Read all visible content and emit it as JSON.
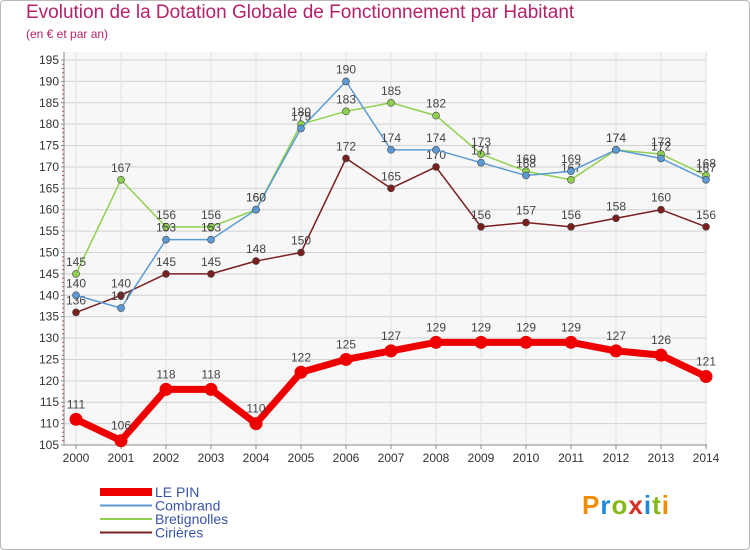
{
  "chart_data": {
    "type": "line",
    "title": "Evolution de la Dotation Globale de Fonctionnement par Habitant",
    "subtitle": "(en € et par an)",
    "xlabel": "",
    "ylabel": "",
    "x": [
      "2000",
      "2001",
      "2002",
      "2003",
      "2004",
      "2005",
      "2006",
      "2007",
      "2008",
      "2009",
      "2010",
      "2011",
      "2012",
      "2013",
      "2014"
    ],
    "ylim": [
      105,
      195
    ],
    "yticks": [
      "105",
      "110",
      "115",
      "120",
      "125",
      "130",
      "135",
      "140",
      "145",
      "150",
      "155",
      "160",
      "165",
      "170",
      "175",
      "180",
      "185",
      "190",
      "195"
    ],
    "grid": true,
    "series": [
      {
        "name": "LE PIN",
        "color": "#ee0000",
        "values": [
          111,
          106,
          118,
          118,
          110,
          122,
          125,
          127,
          129,
          129,
          129,
          129,
          127,
          126,
          121
        ]
      },
      {
        "name": "Combrand",
        "color": "#5b9bd5",
        "values": [
          140,
          137,
          153,
          153,
          160,
          179,
          190,
          174,
          174,
          171,
          168,
          169,
          174,
          172,
          167
        ]
      },
      {
        "name": "Bretignolles",
        "color": "#8fd14f",
        "values": [
          145,
          167,
          156,
          156,
          160,
          180,
          183,
          185,
          182,
          173,
          169,
          167,
          174,
          173,
          168
        ]
      },
      {
        "name": "Cirières",
        "color": "#7b1e1e",
        "values": [
          136,
          140,
          145,
          145,
          148,
          150,
          172,
          165,
          170,
          156,
          157,
          156,
          158,
          160,
          156
        ]
      }
    ],
    "legend_position": "bottom-left"
  },
  "brand": {
    "logo_text": "Proxiti",
    "colors": [
      "#f28c00",
      "#1f8ad6",
      "#86b817",
      "#d63027",
      "#1f8ad6",
      "#86b817",
      "#f28c00"
    ]
  }
}
